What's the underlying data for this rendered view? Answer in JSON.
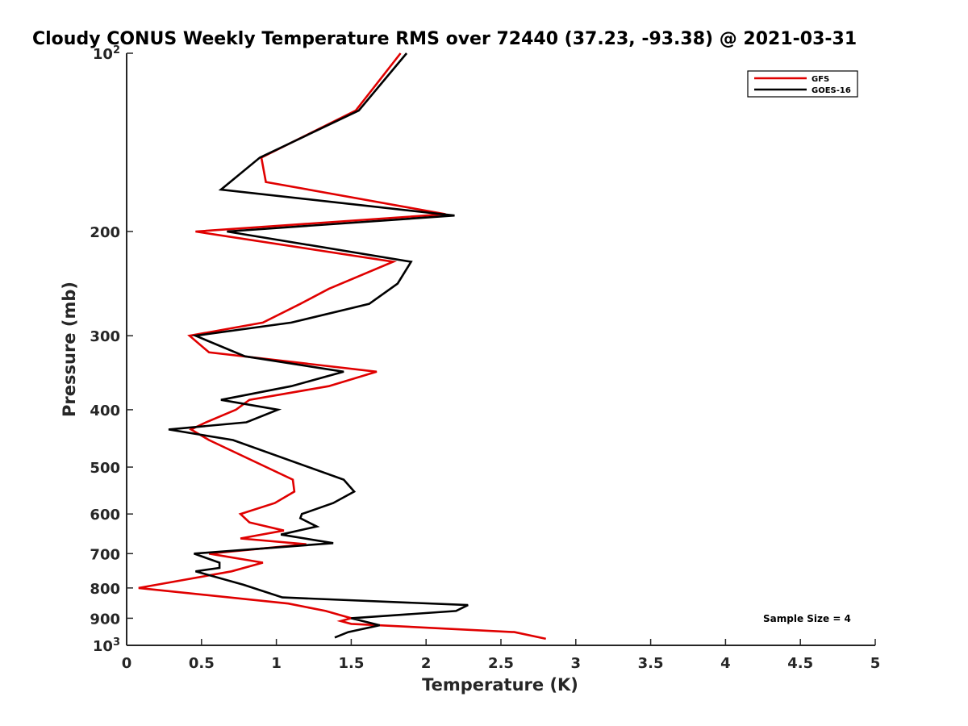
{
  "chart_data": {
    "type": "line",
    "title": "Cloudy CONUS Weekly Temperature RMS over 72440 (37.23, -93.38) @ 2021-03-31",
    "xlabel": "Temperature (K)",
    "ylabel": "Pressure (mb)",
    "xlim": [
      0,
      5
    ],
    "ylim": [
      100,
      1000
    ],
    "yscale": "log",
    "y_reversed": true,
    "grid": false,
    "legend_position": "top-right",
    "xticks": [
      0,
      0.5,
      1,
      1.5,
      2,
      2.5,
      3,
      3.5,
      4,
      4.5,
      5
    ],
    "xtick_labels": [
      "0",
      "0.5",
      "1",
      "1.5",
      "2",
      "2.5",
      "3",
      "3.5",
      "4",
      "4.5",
      "5"
    ],
    "yticks": [
      {
        "value": 100,
        "base": "10",
        "exp": "2"
      },
      {
        "value": 200,
        "label": "200"
      },
      {
        "value": 300,
        "label": "300"
      },
      {
        "value": 400,
        "label": "400"
      },
      {
        "value": 500,
        "label": "500"
      },
      {
        "value": 600,
        "label": "600"
      },
      {
        "value": 700,
        "label": "700"
      },
      {
        "value": 800,
        "label": "800"
      },
      {
        "value": 900,
        "label": "900"
      },
      {
        "value": 1000,
        "base": "10",
        "exp": "3"
      }
    ],
    "annotation": "Sample Size = 4",
    "series": [
      {
        "name": "GFS",
        "color": "#e00000",
        "points": [
          [
            1.83,
            100
          ],
          [
            1.53,
            125
          ],
          [
            0.9,
            150
          ],
          [
            0.93,
            165
          ],
          [
            2.13,
            187
          ],
          [
            0.46,
            200
          ],
          [
            1.78,
            225
          ],
          [
            1.35,
            250
          ],
          [
            1.16,
            265
          ],
          [
            0.91,
            285
          ],
          [
            0.42,
            300
          ],
          [
            0.55,
            320
          ],
          [
            1.67,
            345
          ],
          [
            1.35,
            365
          ],
          [
            0.82,
            385
          ],
          [
            0.73,
            400
          ],
          [
            0.53,
            420
          ],
          [
            0.43,
            432
          ],
          [
            0.55,
            450
          ],
          [
            1.11,
            525
          ],
          [
            1.12,
            550
          ],
          [
            0.99,
            575
          ],
          [
            0.76,
            600
          ],
          [
            0.82,
            620
          ],
          [
            1.05,
            640
          ],
          [
            0.76,
            660
          ],
          [
            1.2,
            675
          ],
          [
            0.55,
            700
          ],
          [
            0.91,
            725
          ],
          [
            0.7,
            750
          ],
          [
            0.08,
            800
          ],
          [
            1.08,
            850
          ],
          [
            1.33,
            875
          ],
          [
            1.5,
            900
          ],
          [
            1.43,
            910
          ],
          [
            1.5,
            920
          ],
          [
            2.59,
            950
          ],
          [
            2.8,
            975
          ]
        ]
      },
      {
        "name": "GOES-16",
        "color": "#000000",
        "points": [
          [
            1.87,
            100
          ],
          [
            1.55,
            125
          ],
          [
            0.89,
            150
          ],
          [
            0.63,
            170
          ],
          [
            2.19,
            188
          ],
          [
            0.67,
            200
          ],
          [
            1.9,
            225
          ],
          [
            1.81,
            245
          ],
          [
            1.62,
            265
          ],
          [
            1.1,
            285
          ],
          [
            0.46,
            300
          ],
          [
            0.79,
            325
          ],
          [
            1.45,
            345
          ],
          [
            1.1,
            365
          ],
          [
            0.63,
            385
          ],
          [
            1.01,
            400
          ],
          [
            0.8,
            420
          ],
          [
            0.28,
            432
          ],
          [
            0.71,
            450
          ],
          [
            1.45,
            525
          ],
          [
            1.52,
            550
          ],
          [
            1.38,
            575
          ],
          [
            1.17,
            600
          ],
          [
            1.16,
            610
          ],
          [
            1.27,
            630
          ],
          [
            1.03,
            650
          ],
          [
            1.38,
            672
          ],
          [
            0.45,
            700
          ],
          [
            0.62,
            725
          ],
          [
            0.62,
            740
          ],
          [
            0.46,
            750
          ],
          [
            0.78,
            790
          ],
          [
            1.04,
            830
          ],
          [
            2.28,
            855
          ],
          [
            2.2,
            875
          ],
          [
            1.5,
            900
          ],
          [
            1.69,
            925
          ],
          [
            1.48,
            950
          ],
          [
            1.39,
            970
          ]
        ]
      }
    ]
  }
}
